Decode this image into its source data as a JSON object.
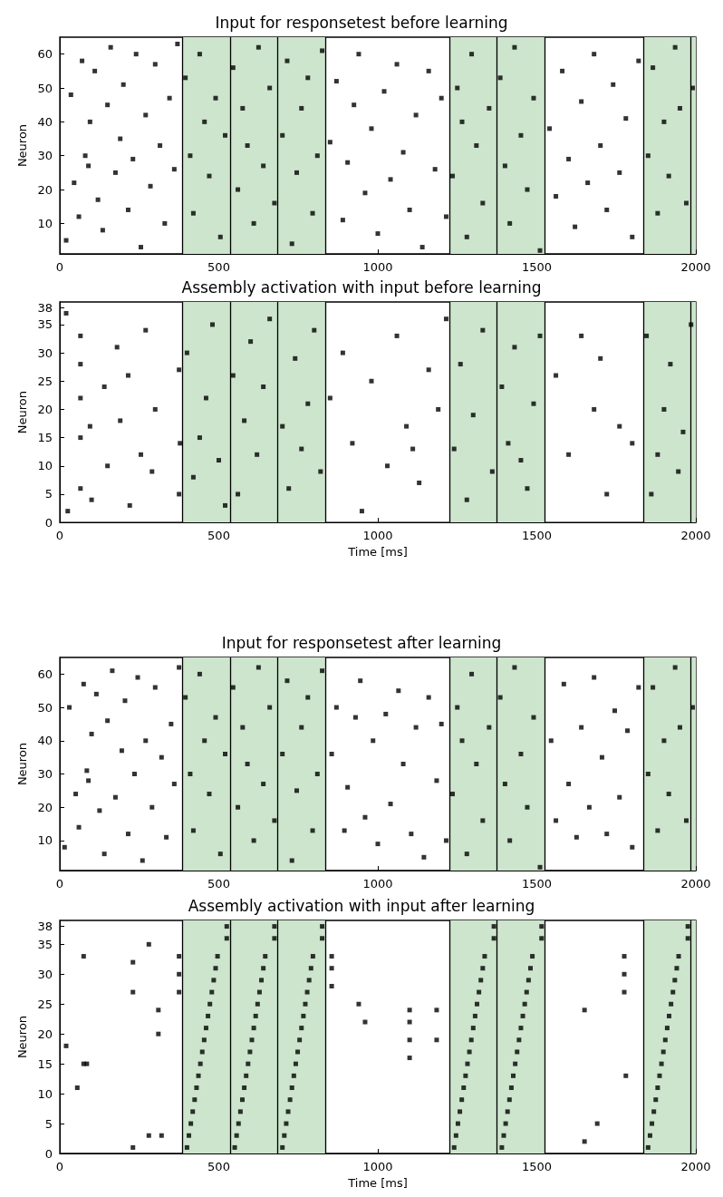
{
  "chart_data": [
    {
      "type": "scatter",
      "title": "Input for responsetest before learning",
      "ylabel": "Neuron",
      "marker": "square",
      "grid": false,
      "xlim": [
        0,
        2000
      ],
      "xticks": [
        0,
        500,
        1000,
        1500,
        2000
      ],
      "ylim": [
        1,
        65
      ],
      "yticks": [
        10,
        20,
        30,
        40,
        50,
        60
      ],
      "series": [
        {
          "color": "#000000",
          "x": [
            20,
            35,
            45,
            60,
            70,
            80,
            90,
            95,
            110,
            120,
            135,
            150,
            160,
            175,
            190,
            200,
            215,
            230,
            240,
            255,
            270,
            285,
            300,
            315,
            330,
            345,
            360,
            370,
            395,
            410,
            420,
            440,
            455,
            470,
            490,
            505,
            520,
            545,
            560,
            575,
            590,
            610,
            625,
            640,
            660,
            675,
            700,
            715,
            730,
            745,
            760,
            780,
            795,
            810,
            825,
            850,
            870,
            890,
            905,
            925,
            940,
            960,
            980,
            1000,
            1020,
            1040,
            1060,
            1080,
            1100,
            1120,
            1140,
            1160,
            1180,
            1200,
            1215,
            1235,
            1250,
            1265,
            1280,
            1295,
            1310,
            1330,
            1350,
            1385,
            1400,
            1415,
            1430,
            1450,
            1470,
            1490,
            1510,
            1540,
            1560,
            1580,
            1600,
            1620,
            1640,
            1660,
            1680,
            1700,
            1720,
            1740,
            1760,
            1780,
            1800,
            1820,
            1850,
            1865,
            1880,
            1900,
            1915,
            1935,
            1950,
            1970,
            1990
          ],
          "values": [
            5,
            48,
            22,
            12,
            58,
            30,
            27,
            40,
            55,
            17,
            8,
            45,
            62,
            25,
            35,
            51,
            14,
            29,
            60,
            3,
            42,
            21,
            57,
            33,
            10,
            47,
            26,
            63,
            53,
            30,
            13,
            60,
            40,
            24,
            47,
            6,
            36,
            56,
            20,
            44,
            33,
            10,
            62,
            27,
            50,
            16,
            36,
            58,
            4,
            25,
            44,
            53,
            13,
            30,
            61,
            34,
            52,
            11,
            28,
            45,
            60,
            19,
            38,
            7,
            49,
            23,
            57,
            31,
            14,
            42,
            3,
            55,
            26,
            47,
            12,
            24,
            50,
            40,
            6,
            60,
            33,
            16,
            44,
            53,
            27,
            10,
            62,
            36,
            20,
            47,
            2,
            38,
            18,
            55,
            29,
            9,
            46,
            22,
            60,
            33,
            14,
            51,
            25,
            41,
            6,
            58,
            30,
            56,
            13,
            40,
            24,
            62,
            44,
            16,
            50
          ]
        }
      ],
      "bands": [
        {
          "axis": "x",
          "from": 385,
          "to": 835,
          "color": "#cce5cc"
        },
        {
          "axis": "x",
          "from": 1225,
          "to": 1525,
          "color": "#cce5cc"
        },
        {
          "axis": "x",
          "from": 1835,
          "to": 2000,
          "color": "#cce5cc"
        }
      ],
      "ref_lines": [
        {
          "axis": "x",
          "value": 385,
          "color": "#000000"
        },
        {
          "axis": "x",
          "value": 535,
          "color": "#000000"
        },
        {
          "axis": "x",
          "value": 685,
          "color": "#000000"
        },
        {
          "axis": "x",
          "value": 835,
          "color": "#000000"
        },
        {
          "axis": "x",
          "value": 1225,
          "color": "#000000"
        },
        {
          "axis": "x",
          "value": 1375,
          "color": "#000000"
        },
        {
          "axis": "x",
          "value": 1525,
          "color": "#000000"
        },
        {
          "axis": "x",
          "value": 1835,
          "color": "#000000"
        },
        {
          "axis": "x",
          "value": 1985,
          "color": "#000000"
        }
      ]
    },
    {
      "type": "scatter",
      "title": "Assembly activation with input before learning",
      "xlabel": "Time [ms]",
      "ylabel": "Neuron",
      "marker": "square",
      "grid": false,
      "xlim": [
        0,
        2000
      ],
      "xticks": [
        0,
        500,
        1000,
        1500,
        2000
      ],
      "ylim": [
        0,
        39
      ],
      "yticks": [
        0,
        5,
        10,
        15,
        20,
        25,
        30,
        35,
        38
      ],
      "series": [
        {
          "color": "#000000",
          "x": [
            20,
            25,
            65,
            65,
            65,
            65,
            65,
            95,
            100,
            140,
            150,
            180,
            190,
            215,
            220,
            255,
            270,
            290,
            300,
            375,
            375,
            378,
            400,
            420,
            440,
            460,
            480,
            500,
            520,
            545,
            560,
            580,
            600,
            620,
            640,
            660,
            700,
            720,
            740,
            760,
            780,
            800,
            820,
            850,
            890,
            920,
            950,
            980,
            1030,
            1060,
            1090,
            1110,
            1130,
            1160,
            1190,
            1215,
            1240,
            1260,
            1280,
            1300,
            1330,
            1360,
            1390,
            1410,
            1430,
            1450,
            1470,
            1490,
            1510,
            1560,
            1600,
            1640,
            1680,
            1700,
            1720,
            1760,
            1800,
            1845,
            1860,
            1880,
            1900,
            1920,
            1945,
            1960,
            1985
          ],
          "values": [
            37,
            2,
            33,
            28,
            22,
            15,
            6,
            17,
            4,
            24,
            10,
            31,
            18,
            26,
            3,
            12,
            34,
            9,
            20,
            5,
            27,
            14,
            30,
            8,
            15,
            22,
            35,
            11,
            3,
            26,
            5,
            18,
            32,
            12,
            24,
            36,
            17,
            6,
            29,
            13,
            21,
            34,
            9,
            22,
            30,
            14,
            2,
            25,
            10,
            33,
            17,
            13,
            7,
            27,
            20,
            36,
            13,
            28,
            4,
            19,
            34,
            9,
            24,
            14,
            31,
            11,
            6,
            21,
            33,
            26,
            12,
            33,
            20,
            29,
            5,
            17,
            14,
            33,
            5,
            12,
            20,
            28,
            9,
            16,
            35
          ]
        }
      ],
      "bands": [
        {
          "axis": "x",
          "from": 385,
          "to": 835,
          "color": "#cce5cc"
        },
        {
          "axis": "x",
          "from": 1225,
          "to": 1525,
          "color": "#cce5cc"
        },
        {
          "axis": "x",
          "from": 1835,
          "to": 2000,
          "color": "#cce5cc"
        }
      ],
      "ref_lines": [
        {
          "axis": "x",
          "value": 385,
          "color": "#000000"
        },
        {
          "axis": "x",
          "value": 535,
          "color": "#000000"
        },
        {
          "axis": "x",
          "value": 685,
          "color": "#000000"
        },
        {
          "axis": "x",
          "value": 835,
          "color": "#000000"
        },
        {
          "axis": "x",
          "value": 1225,
          "color": "#000000"
        },
        {
          "axis": "x",
          "value": 1375,
          "color": "#000000"
        },
        {
          "axis": "x",
          "value": 1525,
          "color": "#000000"
        },
        {
          "axis": "x",
          "value": 1835,
          "color": "#000000"
        },
        {
          "axis": "x",
          "value": 1985,
          "color": "#000000"
        }
      ]
    },
    {
      "type": "scatter",
      "title": "Input for responsetest after learning",
      "ylabel": "Neuron",
      "marker": "square",
      "grid": false,
      "xlim": [
        0,
        2000
      ],
      "xticks": [
        0,
        500,
        1000,
        1500,
        2000
      ],
      "ylim": [
        1,
        65
      ],
      "yticks": [
        10,
        20,
        30,
        40,
        50,
        60
      ],
      "series": [
        {
          "color": "#000000",
          "x": [
            15,
            30,
            50,
            60,
            75,
            85,
            90,
            100,
            115,
            125,
            140,
            150,
            165,
            175,
            195,
            205,
            215,
            235,
            245,
            260,
            270,
            290,
            300,
            320,
            335,
            350,
            360,
            375,
            395,
            410,
            420,
            440,
            455,
            470,
            490,
            505,
            520,
            545,
            560,
            575,
            590,
            610,
            625,
            640,
            660,
            675,
            700,
            715,
            730,
            745,
            760,
            780,
            795,
            810,
            825,
            855,
            870,
            895,
            905,
            930,
            945,
            960,
            985,
            1000,
            1025,
            1040,
            1065,
            1080,
            1105,
            1120,
            1145,
            1160,
            1185,
            1200,
            1215,
            1235,
            1250,
            1265,
            1280,
            1295,
            1310,
            1330,
            1350,
            1385,
            1400,
            1415,
            1430,
            1450,
            1470,
            1490,
            1510,
            1545,
            1560,
            1585,
            1600,
            1625,
            1640,
            1665,
            1680,
            1705,
            1720,
            1745,
            1760,
            1785,
            1800,
            1820,
            1850,
            1865,
            1880,
            1900,
            1915,
            1935,
            1950,
            1970,
            1990
          ],
          "values": [
            8,
            50,
            24,
            14,
            57,
            31,
            28,
            42,
            54,
            19,
            6,
            46,
            61,
            23,
            37,
            52,
            12,
            30,
            59,
            4,
            40,
            20,
            56,
            35,
            11,
            45,
            27,
            62,
            53,
            30,
            13,
            60,
            40,
            24,
            47,
            6,
            36,
            56,
            20,
            44,
            33,
            10,
            62,
            27,
            50,
            16,
            36,
            58,
            4,
            25,
            44,
            53,
            13,
            30,
            61,
            36,
            50,
            13,
            26,
            47,
            58,
            17,
            40,
            9,
            48,
            21,
            55,
            33,
            12,
            44,
            5,
            53,
            28,
            45,
            10,
            24,
            50,
            40,
            6,
            60,
            33,
            16,
            44,
            53,
            27,
            10,
            62,
            36,
            20,
            47,
            2,
            40,
            16,
            57,
            27,
            11,
            44,
            20,
            59,
            35,
            12,
            49,
            23,
            43,
            8,
            56,
            30,
            56,
            13,
            40,
            24,
            62,
            44,
            16,
            50
          ]
        }
      ],
      "bands": [
        {
          "axis": "x",
          "from": 385,
          "to": 835,
          "color": "#cce5cc"
        },
        {
          "axis": "x",
          "from": 1225,
          "to": 1525,
          "color": "#cce5cc"
        },
        {
          "axis": "x",
          "from": 1835,
          "to": 2000,
          "color": "#cce5cc"
        }
      ],
      "ref_lines": [
        {
          "axis": "x",
          "value": 385,
          "color": "#000000"
        },
        {
          "axis": "x",
          "value": 535,
          "color": "#000000"
        },
        {
          "axis": "x",
          "value": 685,
          "color": "#000000"
        },
        {
          "axis": "x",
          "value": 835,
          "color": "#000000"
        },
        {
          "axis": "x",
          "value": 1225,
          "color": "#000000"
        },
        {
          "axis": "x",
          "value": 1375,
          "color": "#000000"
        },
        {
          "axis": "x",
          "value": 1525,
          "color": "#000000"
        },
        {
          "axis": "x",
          "value": 1835,
          "color": "#000000"
        },
        {
          "axis": "x",
          "value": 1985,
          "color": "#000000"
        }
      ]
    },
    {
      "type": "scatter",
      "title": "Assembly activation with input after learning",
      "xlabel": "Time [ms]",
      "ylabel": "Neuron",
      "marker": "square",
      "grid": false,
      "xlim": [
        0,
        2000
      ],
      "xticks": [
        0,
        500,
        1000,
        1500,
        2000
      ],
      "ylim": [
        0,
        39
      ],
      "yticks": [
        0,
        5,
        10,
        15,
        20,
        25,
        30,
        35,
        38
      ],
      "series": [
        {
          "color": "#000000",
          "x": [
            400,
            406,
            412,
            418,
            424,
            430,
            436,
            442,
            448,
            454,
            460,
            466,
            472,
            478,
            484,
            490,
            496,
            525,
            525,
            550,
            556,
            562,
            568,
            574,
            580,
            586,
            592,
            598,
            604,
            610,
            616,
            622,
            628,
            634,
            640,
            646,
            675,
            675,
            700,
            706,
            712,
            718,
            724,
            730,
            736,
            742,
            748,
            754,
            760,
            766,
            772,
            778,
            784,
            790,
            796,
            825,
            825,
            1240,
            1246,
            1252,
            1258,
            1264,
            1270,
            1276,
            1282,
            1288,
            1294,
            1300,
            1306,
            1312,
            1318,
            1324,
            1330,
            1336,
            1365,
            1365,
            1390,
            1396,
            1402,
            1408,
            1414,
            1420,
            1426,
            1432,
            1438,
            1444,
            1450,
            1456,
            1462,
            1468,
            1474,
            1480,
            1486,
            1515,
            1515,
            1850,
            1856,
            1862,
            1868,
            1874,
            1880,
            1886,
            1892,
            1898,
            1904,
            1910,
            1916,
            1922,
            1928,
            1934,
            1940,
            1946,
            1975,
            1975,
            375,
            375,
            375,
            855,
            855,
            855,
            1100,
            1100,
            1100,
            1100,
            1775,
            1775,
            1775,
            75,
            230,
            230,
            280,
            280,
            20,
            75,
            85,
            55,
            310,
            310,
            230,
            320,
            940,
            960,
            1185,
            1185,
            1650,
            1650,
            1690,
            1780
          ],
          "values": [
            1,
            3,
            5,
            7,
            9,
            11,
            13,
            15,
            17,
            19,
            21,
            23,
            25,
            27,
            29,
            31,
            33,
            36,
            38,
            1,
            3,
            5,
            7,
            9,
            11,
            13,
            15,
            17,
            19,
            21,
            23,
            25,
            27,
            29,
            31,
            33,
            36,
            38,
            1,
            3,
            5,
            7,
            9,
            11,
            13,
            15,
            17,
            19,
            21,
            23,
            25,
            27,
            29,
            31,
            33,
            36,
            38,
            1,
            3,
            5,
            7,
            9,
            11,
            13,
            15,
            17,
            19,
            21,
            23,
            25,
            27,
            29,
            31,
            33,
            36,
            38,
            1,
            3,
            5,
            7,
            9,
            11,
            13,
            15,
            17,
            19,
            21,
            23,
            25,
            27,
            29,
            31,
            33,
            36,
            38,
            1,
            3,
            5,
            7,
            9,
            11,
            13,
            15,
            17,
            19,
            21,
            23,
            25,
            27,
            29,
            31,
            33,
            36,
            38,
            27,
            30,
            33,
            28,
            31,
            33,
            16,
            19,
            22,
            24,
            27,
            30,
            33,
            33,
            27,
            32,
            35,
            3,
            18,
            15,
            15,
            11,
            20,
            24,
            1,
            3,
            25,
            22,
            19,
            24,
            24,
            2,
            5,
            13
          ]
        }
      ],
      "bands": [
        {
          "axis": "x",
          "from": 385,
          "to": 835,
          "color": "#cce5cc"
        },
        {
          "axis": "x",
          "from": 1225,
          "to": 1525,
          "color": "#cce5cc"
        },
        {
          "axis": "x",
          "from": 1835,
          "to": 2000,
          "color": "#cce5cc"
        }
      ],
      "ref_lines": [
        {
          "axis": "x",
          "value": 385,
          "color": "#000000"
        },
        {
          "axis": "x",
          "value": 535,
          "color": "#000000"
        },
        {
          "axis": "x",
          "value": 685,
          "color": "#000000"
        },
        {
          "axis": "x",
          "value": 835,
          "color": "#000000"
        },
        {
          "axis": "x",
          "value": 1225,
          "color": "#000000"
        },
        {
          "axis": "x",
          "value": 1375,
          "color": "#000000"
        },
        {
          "axis": "x",
          "value": 1525,
          "color": "#000000"
        },
        {
          "axis": "x",
          "value": 1835,
          "color": "#000000"
        },
        {
          "axis": "x",
          "value": 1985,
          "color": "#000000"
        }
      ]
    }
  ]
}
